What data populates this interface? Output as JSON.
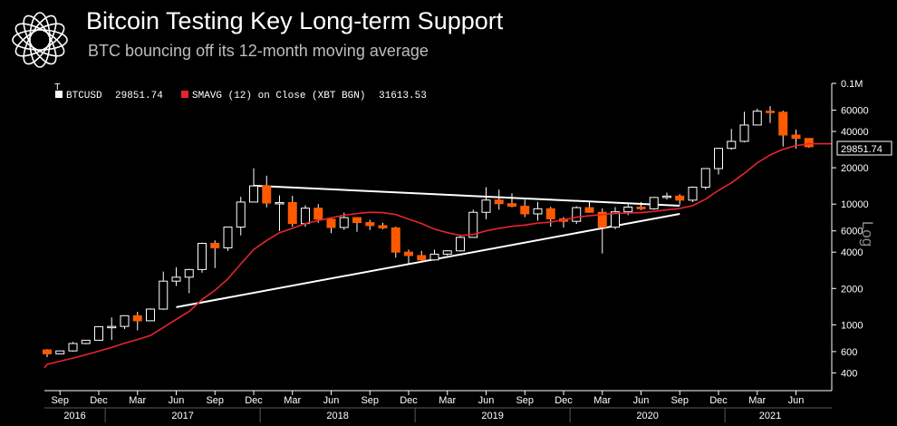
{
  "header": {
    "title": "Bitcoin Testing Key Long-term Support",
    "subtitle": "BTC bouncing off its 12-month moving average",
    "logo": "knot-logo-icon"
  },
  "chart_data": {
    "type": "candlestick",
    "legend": [
      {
        "label": "BTCUSD",
        "value": "29851.74",
        "color": "#ffffff"
      },
      {
        "label": "SMAVG (12)  on Close (XBT BGN)",
        "value": "31613.53",
        "color": "#e8242e"
      }
    ],
    "last_price_label": "29851.74",
    "y_scale": "log",
    "y_axis_label": "Log",
    "ylim": [
      300,
      100000
    ],
    "y_ticks": [
      {
        "v": 100000,
        "label": "0.1M"
      },
      {
        "v": 60000,
        "label": "60000"
      },
      {
        "v": 40000,
        "label": "40000"
      },
      {
        "v": 20000,
        "label": "20000"
      },
      {
        "v": 10000,
        "label": "10000"
      },
      {
        "v": 6000,
        "label": "6000"
      },
      {
        "v": 4000,
        "label": "4000"
      },
      {
        "v": 2000,
        "label": "2000"
      },
      {
        "v": 1000,
        "label": "1000"
      },
      {
        "v": 600,
        "label": "600"
      },
      {
        "v": 400,
        "label": "400"
      }
    ],
    "x_month_labels": [
      "Sep",
      "Dec",
      "Mar",
      "Jun",
      "Sep",
      "Dec",
      "Mar",
      "Jun",
      "Sep",
      "Dec",
      "Mar",
      "Jun",
      "Sep",
      "Dec",
      "Mar",
      "Jun",
      "Sep",
      "Dec",
      "Mar",
      "Jun"
    ],
    "x_year_labels": [
      "2016",
      "2017",
      "2018",
      "2019",
      "2020",
      "2021"
    ],
    "colors": {
      "up": "#ffffff",
      "down": "#ff5a00",
      "sma": "#e8242e",
      "trend": "#ffffff",
      "axis": "#ffffff",
      "grid": "#5a5a5a"
    },
    "candles": [
      {
        "d": "2016-08",
        "o": 620,
        "h": 630,
        "l": 540,
        "c": 575
      },
      {
        "d": "2016-09",
        "o": 575,
        "h": 610,
        "l": 570,
        "c": 608
      },
      {
        "d": "2016-10",
        "o": 608,
        "h": 720,
        "l": 600,
        "c": 700
      },
      {
        "d": "2016-11",
        "o": 700,
        "h": 750,
        "l": 690,
        "c": 745
      },
      {
        "d": "2016-12",
        "o": 745,
        "h": 975,
        "l": 740,
        "c": 965
      },
      {
        "d": "2017-01",
        "o": 965,
        "h": 1150,
        "l": 750,
        "c": 970
      },
      {
        "d": "2017-02",
        "o": 970,
        "h": 1200,
        "l": 920,
        "c": 1190
      },
      {
        "d": "2017-03",
        "o": 1190,
        "h": 1280,
        "l": 900,
        "c": 1080
      },
      {
        "d": "2017-04",
        "o": 1080,
        "h": 1370,
        "l": 1070,
        "c": 1350
      },
      {
        "d": "2017-05",
        "o": 1350,
        "h": 2760,
        "l": 1330,
        "c": 2300
      },
      {
        "d": "2017-06",
        "o": 2300,
        "h": 3000,
        "l": 2100,
        "c": 2480
      },
      {
        "d": "2017-07",
        "o": 2480,
        "h": 2900,
        "l": 1830,
        "c": 2870
      },
      {
        "d": "2017-08",
        "o": 2870,
        "h": 4800,
        "l": 2700,
        "c": 4730
      },
      {
        "d": "2017-09",
        "o": 4730,
        "h": 5000,
        "l": 2950,
        "c": 4340
      },
      {
        "d": "2017-10",
        "o": 4340,
        "h": 6450,
        "l": 4100,
        "c": 6450
      },
      {
        "d": "2017-11",
        "o": 6450,
        "h": 11500,
        "l": 5500,
        "c": 10400
      },
      {
        "d": "2017-12",
        "o": 10400,
        "h": 19800,
        "l": 10400,
        "c": 14150
      },
      {
        "d": "2018-01",
        "o": 14150,
        "h": 17200,
        "l": 9400,
        "c": 10200
      },
      {
        "d": "2018-02",
        "o": 10200,
        "h": 11800,
        "l": 6000,
        "c": 10300
      },
      {
        "d": "2018-03",
        "o": 10300,
        "h": 11700,
        "l": 6500,
        "c": 6900
      },
      {
        "d": "2018-04",
        "o": 6900,
        "h": 9800,
        "l": 6500,
        "c": 9250
      },
      {
        "d": "2018-05",
        "o": 9250,
        "h": 10000,
        "l": 7000,
        "c": 7500
      },
      {
        "d": "2018-06",
        "o": 7500,
        "h": 7800,
        "l": 5750,
        "c": 6400
      },
      {
        "d": "2018-07",
        "o": 6400,
        "h": 8500,
        "l": 6100,
        "c": 7730
      },
      {
        "d": "2018-08",
        "o": 7730,
        "h": 7800,
        "l": 5900,
        "c": 7030
      },
      {
        "d": "2018-09",
        "o": 7030,
        "h": 7400,
        "l": 6100,
        "c": 6630
      },
      {
        "d": "2018-10",
        "o": 6630,
        "h": 7000,
        "l": 6200,
        "c": 6350
      },
      {
        "d": "2018-11",
        "o": 6350,
        "h": 6500,
        "l": 3600,
        "c": 4000
      },
      {
        "d": "2018-12",
        "o": 4000,
        "h": 4200,
        "l": 3200,
        "c": 3750
      },
      {
        "d": "2019-01",
        "o": 3750,
        "h": 4100,
        "l": 3400,
        "c": 3450
      },
      {
        "d": "2019-02",
        "o": 3450,
        "h": 4200,
        "l": 3400,
        "c": 3850
      },
      {
        "d": "2019-03",
        "o": 3850,
        "h": 4150,
        "l": 3750,
        "c": 4100
      },
      {
        "d": "2019-04",
        "o": 4100,
        "h": 5600,
        "l": 4050,
        "c": 5300
      },
      {
        "d": "2019-05",
        "o": 5300,
        "h": 9000,
        "l": 5300,
        "c": 8550
      },
      {
        "d": "2019-06",
        "o": 8550,
        "h": 13800,
        "l": 7500,
        "c": 10800
      },
      {
        "d": "2019-07",
        "o": 10800,
        "h": 13200,
        "l": 9000,
        "c": 10080
      },
      {
        "d": "2019-08",
        "o": 10080,
        "h": 12300,
        "l": 9400,
        "c": 9600
      },
      {
        "d": "2019-09",
        "o": 9600,
        "h": 10900,
        "l": 7800,
        "c": 8300
      },
      {
        "d": "2019-10",
        "o": 8300,
        "h": 10400,
        "l": 7300,
        "c": 9150
      },
      {
        "d": "2019-11",
        "o": 9150,
        "h": 9500,
        "l": 6500,
        "c": 7550
      },
      {
        "d": "2019-12",
        "o": 7550,
        "h": 7800,
        "l": 6400,
        "c": 7200
      },
      {
        "d": "2020-01",
        "o": 7200,
        "h": 9600,
        "l": 6850,
        "c": 9350
      },
      {
        "d": "2020-02",
        "o": 9350,
        "h": 10500,
        "l": 8500,
        "c": 8550
      },
      {
        "d": "2020-03",
        "o": 8550,
        "h": 9200,
        "l": 3900,
        "c": 6440
      },
      {
        "d": "2020-04",
        "o": 6440,
        "h": 9450,
        "l": 6200,
        "c": 8630
      },
      {
        "d": "2020-05",
        "o": 8630,
        "h": 10000,
        "l": 8100,
        "c": 9450
      },
      {
        "d": "2020-06",
        "o": 9450,
        "h": 10400,
        "l": 8900,
        "c": 9140
      },
      {
        "d": "2020-07",
        "o": 9140,
        "h": 11450,
        "l": 9000,
        "c": 11350
      },
      {
        "d": "2020-08",
        "o": 11350,
        "h": 12450,
        "l": 10900,
        "c": 11650
      },
      {
        "d": "2020-09",
        "o": 11650,
        "h": 12100,
        "l": 9900,
        "c": 10780
      },
      {
        "d": "2020-10",
        "o": 10780,
        "h": 14000,
        "l": 10400,
        "c": 13800
      },
      {
        "d": "2020-11",
        "o": 13800,
        "h": 19800,
        "l": 13200,
        "c": 19700
      },
      {
        "d": "2020-12",
        "o": 19700,
        "h": 29300,
        "l": 17600,
        "c": 28950
      },
      {
        "d": "2021-01",
        "o": 28950,
        "h": 41950,
        "l": 28200,
        "c": 33100
      },
      {
        "d": "2021-02",
        "o": 33100,
        "h": 58300,
        "l": 32400,
        "c": 45200
      },
      {
        "d": "2021-03",
        "o": 45200,
        "h": 61700,
        "l": 45000,
        "c": 58800
      },
      {
        "d": "2021-04",
        "o": 58800,
        "h": 64800,
        "l": 47000,
        "c": 57700
      },
      {
        "d": "2021-05",
        "o": 57700,
        "h": 59500,
        "l": 30000,
        "c": 37300
      },
      {
        "d": "2021-06",
        "o": 37300,
        "h": 41300,
        "l": 28800,
        "c": 35000
      },
      {
        "d": "2021-07",
        "o": 35000,
        "h": 35000,
        "l": 29300,
        "c": 29852
      }
    ],
    "sma": [
      {
        "d": "2016-08",
        "v": 470
      },
      {
        "d": "2016-09",
        "v": 500
      },
      {
        "d": "2016-10",
        "v": 530
      },
      {
        "d": "2016-11",
        "v": 565
      },
      {
        "d": "2016-12",
        "v": 605
      },
      {
        "d": "2017-01",
        "v": 650
      },
      {
        "d": "2017-02",
        "v": 705
      },
      {
        "d": "2017-03",
        "v": 755
      },
      {
        "d": "2017-04",
        "v": 815
      },
      {
        "d": "2017-05",
        "v": 950
      },
      {
        "d": "2017-06",
        "v": 1110
      },
      {
        "d": "2017-07",
        "v": 1290
      },
      {
        "d": "2017-08",
        "v": 1620
      },
      {
        "d": "2017-09",
        "v": 1930
      },
      {
        "d": "2017-10",
        "v": 2400
      },
      {
        "d": "2017-11",
        "v": 3200
      },
      {
        "d": "2017-12",
        "v": 4200
      },
      {
        "d": "2018-01",
        "v": 5000
      },
      {
        "d": "2018-02",
        "v": 5800
      },
      {
        "d": "2018-03",
        "v": 6300
      },
      {
        "d": "2018-04",
        "v": 6900
      },
      {
        "d": "2018-05",
        "v": 7300
      },
      {
        "d": "2018-06",
        "v": 7700
      },
      {
        "d": "2018-07",
        "v": 8100
      },
      {
        "d": "2018-08",
        "v": 8350
      },
      {
        "d": "2018-09",
        "v": 8550
      },
      {
        "d": "2018-10",
        "v": 8500
      },
      {
        "d": "2018-11",
        "v": 8200
      },
      {
        "d": "2018-12",
        "v": 7500
      },
      {
        "d": "2019-01",
        "v": 6900
      },
      {
        "d": "2019-02",
        "v": 6200
      },
      {
        "d": "2019-03",
        "v": 5800
      },
      {
        "d": "2019-04",
        "v": 5500
      },
      {
        "d": "2019-05",
        "v": 5600
      },
      {
        "d": "2019-06",
        "v": 6000
      },
      {
        "d": "2019-07",
        "v": 6300
      },
      {
        "d": "2019-08",
        "v": 6550
      },
      {
        "d": "2019-09",
        "v": 6700
      },
      {
        "d": "2019-10",
        "v": 6950
      },
      {
        "d": "2019-11",
        "v": 7100
      },
      {
        "d": "2019-12",
        "v": 7400
      },
      {
        "d": "2020-01",
        "v": 7800
      },
      {
        "d": "2020-02",
        "v": 8000
      },
      {
        "d": "2020-03",
        "v": 8200
      },
      {
        "d": "2020-04",
        "v": 8350
      },
      {
        "d": "2020-05",
        "v": 8450
      },
      {
        "d": "2020-06",
        "v": 8500
      },
      {
        "d": "2020-07",
        "v": 8700
      },
      {
        "d": "2020-08",
        "v": 8950
      },
      {
        "d": "2020-09",
        "v": 9200
      },
      {
        "d": "2020-10",
        "v": 9700
      },
      {
        "d": "2020-11",
        "v": 11000
      },
      {
        "d": "2020-12",
        "v": 13000
      },
      {
        "d": "2021-01",
        "v": 15000
      },
      {
        "d": "2021-02",
        "v": 18000
      },
      {
        "d": "2021-03",
        "v": 22000
      },
      {
        "d": "2021-04",
        "v": 25500
      },
      {
        "d": "2021-05",
        "v": 28500
      },
      {
        "d": "2021-06",
        "v": 30500
      },
      {
        "d": "2021-07",
        "v": 31614
      }
    ],
    "trendlines": [
      {
        "name": "upper",
        "from": {
          "d": "2017-12",
          "v": 14200
        },
        "to": {
          "d": "2020-09",
          "v": 9700
        }
      },
      {
        "name": "lower",
        "from": {
          "d": "2017-06",
          "v": 1400
        },
        "to": {
          "d": "2020-09",
          "v": 8300
        }
      }
    ]
  }
}
